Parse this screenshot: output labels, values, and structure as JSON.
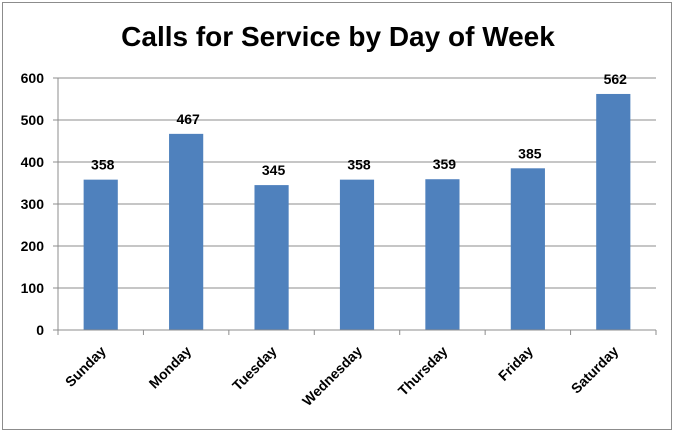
{
  "chart_data": {
    "type": "bar",
    "title": "Calls for Service by Day of Week",
    "categories": [
      "Sunday",
      "Monday",
      "Tuesday",
      "Wednesday",
      "Thursday",
      "Friday",
      "Saturday"
    ],
    "values": [
      358,
      467,
      345,
      358,
      359,
      385,
      562
    ],
    "data_labels": [
      "358",
      "467",
      "345",
      "358",
      "359",
      "385",
      "562"
    ],
    "yticks": [
      "0",
      "100",
      "200",
      "300",
      "400",
      "500",
      "600"
    ],
    "ytick_values": [
      0,
      100,
      200,
      300,
      400,
      500,
      600
    ],
    "ylim": [
      0,
      600
    ],
    "grid": true,
    "legend": "none",
    "bar_color": "#4f81bd",
    "grid_color": "#8c8c8c"
  }
}
